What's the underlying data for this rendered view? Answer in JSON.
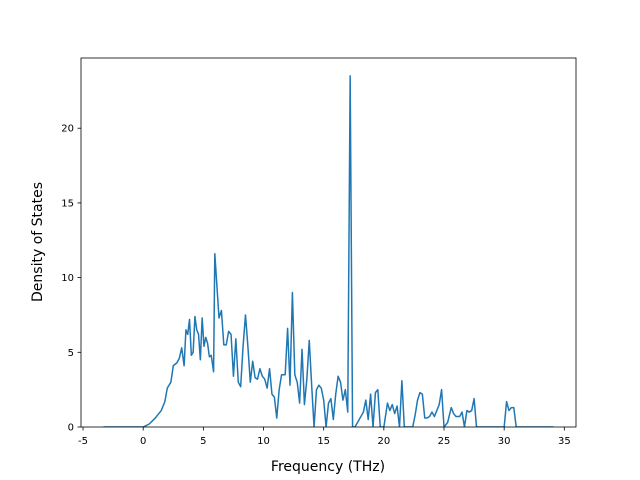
{
  "chart_data": {
    "type": "line",
    "xlabel": "Frequency (THz)",
    "ylabel": "Density of States",
    "x": [
      -3.3,
      0,
      0.5,
      1,
      1.5,
      1.8,
      2,
      2.3,
      2.5,
      2.8,
      3,
      3.2,
      3.4,
      3.55,
      3.7,
      3.85,
      4.0,
      4.15,
      4.3,
      4.45,
      4.6,
      4.75,
      4.9,
      5.05,
      5.2,
      5.35,
      5.5,
      5.65,
      5.85,
      5.95,
      6.3,
      6.5,
      6.7,
      6.9,
      7.1,
      7.3,
      7.5,
      7.7,
      7.9,
      8.1,
      8.3,
      8.5,
      8.7,
      8.9,
      9.1,
      9.3,
      9.5,
      9.7,
      9.9,
      10.1,
      10.3,
      10.5,
      10.7,
      10.9,
      11.1,
      11.3,
      11.5,
      11.8,
      12.0,
      12.2,
      12.4,
      12.6,
      12.8,
      13.0,
      13.2,
      13.4,
      13.6,
      13.8,
      14.0,
      14.2,
      14.4,
      14.6,
      14.8,
      15.0,
      15.2,
      15.4,
      15.6,
      15.8,
      16.0,
      16.2,
      16.4,
      16.6,
      16.8,
      17.0,
      17.2,
      17.4,
      17.6,
      18.3,
      18.5,
      18.7,
      18.9,
      19.1,
      19.3,
      19.5,
      19.7,
      20,
      20.3,
      20.5,
      20.7,
      20.9,
      21.1,
      21.3,
      21.5,
      21.7,
      22.4,
      22.6,
      22.8,
      23,
      23.2,
      23.4,
      23.6,
      23.8,
      24,
      24.2,
      24.4,
      24.6,
      24.8,
      25,
      25.3,
      25.6,
      25.8,
      26,
      26.3,
      26.5,
      26.7,
      26.9,
      27.1,
      27.3,
      27.5,
      27.7,
      30,
      30.2,
      30.4,
      30.6,
      30.8,
      31,
      34.1
    ],
    "series": [
      {
        "color": "#1f77b4",
        "values": [
          0,
          0,
          0.2,
          0.6,
          1.1,
          1.7,
          2.6,
          3,
          4.1,
          4.3,
          4.6,
          5.3,
          4.1,
          6.5,
          6.2,
          7.2,
          4.8,
          5,
          7.4,
          6.5,
          6.2,
          4.5,
          7.3,
          5.4,
          6,
          5.6,
          4.7,
          4.8,
          3.7,
          11.6,
          7.3,
          7.8,
          5.5,
          5.5,
          6.4,
          6.2,
          3.4,
          5.9,
          3,
          2.7,
          5.4,
          7.5,
          5.4,
          3,
          4.4,
          3.3,
          3.2,
          3.9,
          3.4,
          3.2,
          2.6,
          3.9,
          2.2,
          2,
          0.6,
          2.5,
          3.5,
          3.5,
          6.6,
          2.8,
          9,
          3.5,
          3,
          1.6,
          5.2,
          1.5,
          3.2,
          5.8,
          2.8,
          0,
          2.5,
          2.8,
          2.6,
          1.8,
          0,
          1.6,
          1.9,
          0.5,
          2.2,
          3.4,
          3,
          1.8,
          2.5,
          1,
          23.5,
          0,
          0,
          1,
          1.8,
          0.5,
          2.2,
          0,
          2.3,
          2.5,
          0,
          0,
          1.6,
          1.1,
          1.5,
          0.9,
          1.4,
          0,
          3.1,
          0,
          0,
          0.8,
          1.8,
          2.3,
          2.2,
          0.6,
          0.6,
          0.7,
          1,
          0.7,
          1.1,
          1.5,
          2.5,
          0,
          0.3,
          1.3,
          0.9,
          0.7,
          0.7,
          1,
          0,
          1.1,
          1,
          1.1,
          1.9,
          0,
          0,
          1.7,
          1.1,
          1.3,
          1.3,
          0,
          0
        ]
      }
    ],
    "xlim": [
      -5.17,
      35.97
    ],
    "ylim": [
      0,
      24.7
    ],
    "xticks": [
      -5,
      0,
      5,
      10,
      15,
      20,
      25,
      30,
      35
    ],
    "yticks": [
      0,
      5,
      10,
      15,
      20
    ]
  }
}
